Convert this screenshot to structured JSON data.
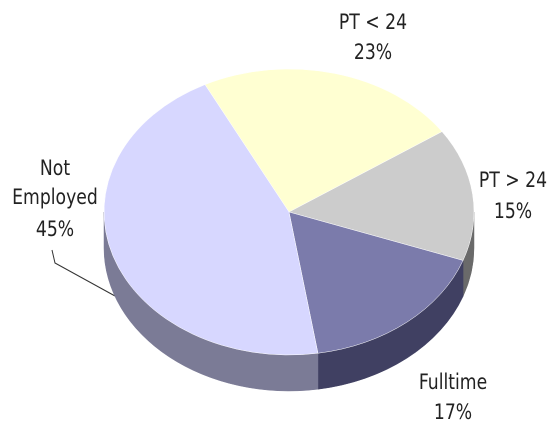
{
  "chart_data": {
    "type": "pie",
    "categories": [
      "PT < 24",
      "PT > 24",
      "Fulltime",
      "Not Employed"
    ],
    "values": [
      23,
      15,
      17,
      45
    ],
    "value_labels": [
      "23%",
      "15%",
      "17%",
      "45%"
    ],
    "colors": [
      "#ffffd2",
      "#cccccc",
      "#7b7bab",
      "#d7d7ff"
    ],
    "side_colors": [
      "#9a9a7e",
      "#6a6a6a",
      "#404062",
      "#7b7b96"
    ]
  }
}
